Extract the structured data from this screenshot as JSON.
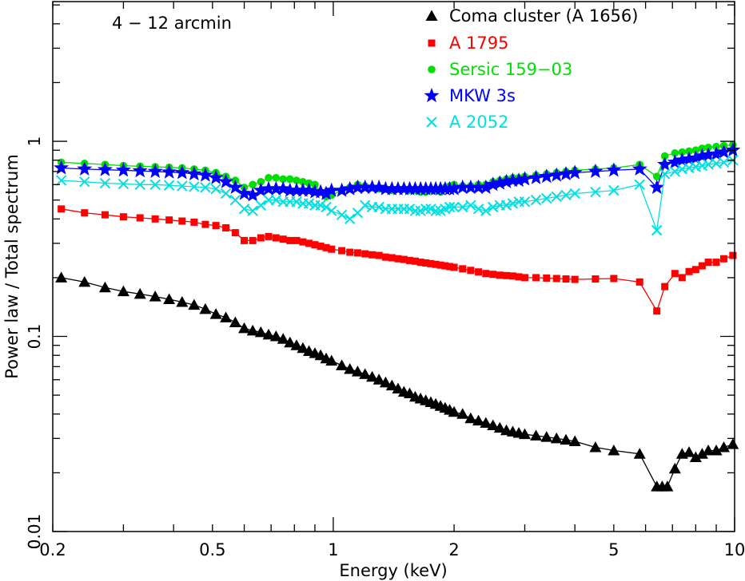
{
  "chart_data": {
    "type": "line",
    "title": "4 − 12 arcmin",
    "xlabel": "Energy (keV)",
    "ylabel": "Power law / Total spectrum",
    "xscale": "log",
    "yscale": "log",
    "xlim": [
      0.2,
      10
    ],
    "ylim": [
      0.01,
      5.2
    ],
    "x_ticks": [
      {
        "value": 0.2,
        "label": "0.2"
      },
      {
        "value": 0.5,
        "label": "0.5"
      },
      {
        "value": 1,
        "label": "1"
      },
      {
        "value": 2,
        "label": "2"
      },
      {
        "value": 5,
        "label": "5"
      },
      {
        "value": 10,
        "label": "10"
      }
    ],
    "y_ticks": [
      {
        "value": 0.01,
        "label": "0.01"
      },
      {
        "value": 0.1,
        "label": "0.1"
      },
      {
        "value": 1,
        "label": "1"
      }
    ],
    "corner_label": "0",
    "legend_position": "top-right",
    "grid": false,
    "series": [
      {
        "name": "Coma cluster (A 1656)",
        "color": "#000000",
        "marker": "triangle",
        "x": [
          0.21,
          0.24,
          0.27,
          0.3,
          0.33,
          0.36,
          0.39,
          0.42,
          0.45,
          0.48,
          0.51,
          0.54,
          0.57,
          0.6,
          0.63,
          0.66,
          0.69,
          0.72,
          0.75,
          0.78,
          0.81,
          0.84,
          0.87,
          0.9,
          0.93,
          0.96,
          0.99,
          1.05,
          1.1,
          1.15,
          1.2,
          1.25,
          1.3,
          1.35,
          1.4,
          1.45,
          1.5,
          1.55,
          1.6,
          1.65,
          1.7,
          1.75,
          1.8,
          1.85,
          1.9,
          1.95,
          2.0,
          2.1,
          2.2,
          2.3,
          2.4,
          2.5,
          2.6,
          2.7,
          2.8,
          2.9,
          3.0,
          3.2,
          3.4,
          3.6,
          3.8,
          4.0,
          4.5,
          5.0,
          5.8,
          6.4,
          6.6,
          6.8,
          7.1,
          7.4,
          7.7,
          8.0,
          8.3,
          8.6,
          9.0,
          9.4,
          9.9
        ],
        "y": [
          0.2,
          0.19,
          0.178,
          0.17,
          0.165,
          0.16,
          0.155,
          0.15,
          0.145,
          0.138,
          0.13,
          0.125,
          0.118,
          0.11,
          0.107,
          0.105,
          0.102,
          0.1,
          0.097,
          0.093,
          0.09,
          0.087,
          0.084,
          0.082,
          0.08,
          0.077,
          0.075,
          0.071,
          0.068,
          0.066,
          0.064,
          0.062,
          0.06,
          0.058,
          0.056,
          0.054,
          0.052,
          0.051,
          0.049,
          0.048,
          0.047,
          0.046,
          0.045,
          0.044,
          0.043,
          0.042,
          0.041,
          0.04,
          0.038,
          0.037,
          0.036,
          0.035,
          0.034,
          0.033,
          0.0325,
          0.032,
          0.0315,
          0.031,
          0.0305,
          0.03,
          0.0295,
          0.029,
          0.027,
          0.026,
          0.025,
          0.017,
          0.017,
          0.017,
          0.021,
          0.025,
          0.0255,
          0.024,
          0.025,
          0.026,
          0.026,
          0.027,
          0.028
        ]
      },
      {
        "name": "A 1795",
        "color": "#ff0000",
        "marker": "square",
        "x": [
          0.21,
          0.24,
          0.27,
          0.3,
          0.33,
          0.36,
          0.39,
          0.42,
          0.45,
          0.48,
          0.51,
          0.54,
          0.57,
          0.6,
          0.63,
          0.66,
          0.69,
          0.72,
          0.75,
          0.78,
          0.81,
          0.84,
          0.87,
          0.9,
          0.93,
          0.96,
          0.99,
          1.05,
          1.1,
          1.15,
          1.2,
          1.25,
          1.3,
          1.35,
          1.4,
          1.45,
          1.5,
          1.55,
          1.6,
          1.65,
          1.7,
          1.75,
          1.8,
          1.85,
          1.9,
          1.95,
          2.0,
          2.1,
          2.2,
          2.3,
          2.4,
          2.5,
          2.6,
          2.7,
          2.8,
          2.9,
          3.0,
          3.2,
          3.4,
          3.6,
          3.8,
          4.0,
          4.5,
          5.0,
          5.8,
          6.4,
          6.7,
          7.1,
          7.4,
          7.7,
          8.0,
          8.3,
          8.6,
          9.0,
          9.4,
          9.9
        ],
        "y": [
          0.45,
          0.43,
          0.42,
          0.41,
          0.405,
          0.4,
          0.395,
          0.39,
          0.385,
          0.375,
          0.37,
          0.36,
          0.34,
          0.31,
          0.31,
          0.32,
          0.325,
          0.32,
          0.315,
          0.31,
          0.31,
          0.305,
          0.3,
          0.295,
          0.29,
          0.285,
          0.28,
          0.275,
          0.27,
          0.268,
          0.265,
          0.262,
          0.26,
          0.255,
          0.253,
          0.25,
          0.248,
          0.245,
          0.243,
          0.24,
          0.238,
          0.236,
          0.234,
          0.232,
          0.23,
          0.228,
          0.226,
          0.222,
          0.218,
          0.214,
          0.21,
          0.208,
          0.206,
          0.205,
          0.204,
          0.202,
          0.2,
          0.2,
          0.199,
          0.198,
          0.197,
          0.196,
          0.197,
          0.198,
          0.19,
          0.135,
          0.18,
          0.21,
          0.2,
          0.215,
          0.22,
          0.23,
          0.24,
          0.24,
          0.25,
          0.26
        ]
      },
      {
        "name": "Sersic 159−03",
        "color": "#00e000",
        "marker": "circle",
        "x": [
          0.21,
          0.24,
          0.27,
          0.3,
          0.33,
          0.36,
          0.39,
          0.42,
          0.45,
          0.48,
          0.51,
          0.54,
          0.57,
          0.6,
          0.63,
          0.66,
          0.69,
          0.72,
          0.75,
          0.78,
          0.81,
          0.84,
          0.87,
          0.9,
          0.93,
          0.96,
          0.99,
          1.05,
          1.1,
          1.15,
          1.2,
          1.25,
          1.3,
          1.35,
          1.4,
          1.45,
          1.5,
          1.55,
          1.6,
          1.65,
          1.7,
          1.75,
          1.8,
          1.85,
          1.9,
          1.95,
          2.0,
          2.1,
          2.2,
          2.3,
          2.4,
          2.5,
          2.6,
          2.7,
          2.8,
          2.9,
          3.0,
          3.2,
          3.4,
          3.6,
          3.8,
          4.0,
          4.5,
          5.0,
          5.8,
          6.4,
          6.7,
          7.1,
          7.4,
          7.7,
          8.0,
          8.3,
          8.6,
          9.0,
          9.4,
          9.9
        ],
        "y": [
          0.78,
          0.77,
          0.76,
          0.75,
          0.745,
          0.74,
          0.735,
          0.73,
          0.72,
          0.71,
          0.69,
          0.66,
          0.63,
          0.58,
          0.6,
          0.62,
          0.65,
          0.65,
          0.64,
          0.64,
          0.63,
          0.62,
          0.61,
          0.6,
          0.55,
          0.52,
          0.53,
          0.56,
          0.58,
          0.6,
          0.59,
          0.58,
          0.57,
          0.57,
          0.56,
          0.57,
          0.57,
          0.56,
          0.56,
          0.55,
          0.55,
          0.56,
          0.56,
          0.55,
          0.58,
          0.59,
          0.6,
          0.59,
          0.59,
          0.6,
          0.6,
          0.62,
          0.63,
          0.64,
          0.65,
          0.65,
          0.66,
          0.67,
          0.68,
          0.69,
          0.7,
          0.71,
          0.72,
          0.73,
          0.76,
          0.66,
          0.84,
          0.87,
          0.88,
          0.89,
          0.9,
          0.92,
          0.93,
          0.94,
          0.95,
          0.96
        ]
      },
      {
        "name": "MKW 3s",
        "color": "#0000ff",
        "marker": "star",
        "x": [
          0.21,
          0.24,
          0.27,
          0.3,
          0.33,
          0.36,
          0.39,
          0.42,
          0.45,
          0.48,
          0.51,
          0.54,
          0.57,
          0.6,
          0.63,
          0.66,
          0.69,
          0.72,
          0.75,
          0.78,
          0.81,
          0.84,
          0.87,
          0.9,
          0.93,
          0.96,
          0.99,
          1.05,
          1.1,
          1.15,
          1.2,
          1.25,
          1.3,
          1.35,
          1.4,
          1.45,
          1.5,
          1.55,
          1.6,
          1.65,
          1.7,
          1.75,
          1.8,
          1.85,
          1.9,
          1.95,
          2.0,
          2.1,
          2.2,
          2.3,
          2.4,
          2.5,
          2.6,
          2.7,
          2.8,
          2.9,
          3.0,
          3.2,
          3.4,
          3.6,
          3.8,
          4.0,
          4.5,
          5.0,
          5.8,
          6.4,
          6.7,
          7.1,
          7.4,
          7.7,
          8.0,
          8.3,
          8.6,
          9.0,
          9.4,
          9.9
        ],
        "y": [
          0.73,
          0.72,
          0.715,
          0.71,
          0.705,
          0.7,
          0.695,
          0.69,
          0.68,
          0.67,
          0.65,
          0.62,
          0.58,
          0.54,
          0.53,
          0.56,
          0.57,
          0.57,
          0.57,
          0.56,
          0.56,
          0.56,
          0.56,
          0.55,
          0.55,
          0.54,
          0.56,
          0.56,
          0.57,
          0.58,
          0.58,
          0.58,
          0.58,
          0.57,
          0.57,
          0.57,
          0.57,
          0.57,
          0.57,
          0.57,
          0.57,
          0.57,
          0.57,
          0.57,
          0.57,
          0.57,
          0.57,
          0.58,
          0.58,
          0.58,
          0.58,
          0.6,
          0.61,
          0.62,
          0.63,
          0.63,
          0.64,
          0.65,
          0.66,
          0.67,
          0.68,
          0.69,
          0.7,
          0.71,
          0.72,
          0.58,
          0.76,
          0.78,
          0.8,
          0.81,
          0.82,
          0.84,
          0.85,
          0.86,
          0.88,
          0.9
        ]
      },
      {
        "name": "A 2052",
        "color": "#00e0e0",
        "marker": "cross",
        "x": [
          0.21,
          0.24,
          0.27,
          0.3,
          0.33,
          0.36,
          0.39,
          0.42,
          0.45,
          0.48,
          0.51,
          0.54,
          0.57,
          0.6,
          0.63,
          0.66,
          0.69,
          0.72,
          0.75,
          0.78,
          0.81,
          0.84,
          0.87,
          0.9,
          0.93,
          0.96,
          0.99,
          1.05,
          1.1,
          1.15,
          1.2,
          1.25,
          1.3,
          1.35,
          1.4,
          1.45,
          1.5,
          1.55,
          1.6,
          1.65,
          1.7,
          1.75,
          1.8,
          1.85,
          1.9,
          1.95,
          2.0,
          2.1,
          2.2,
          2.3,
          2.4,
          2.5,
          2.6,
          2.7,
          2.8,
          2.9,
          3.0,
          3.2,
          3.4,
          3.6,
          3.8,
          4.0,
          4.5,
          5.0,
          5.8,
          6.4,
          6.7,
          7.1,
          7.4,
          7.7,
          8.0,
          8.3,
          8.6,
          9.0,
          9.4,
          9.9
        ],
        "y": [
          0.63,
          0.62,
          0.61,
          0.605,
          0.6,
          0.6,
          0.595,
          0.59,
          0.585,
          0.58,
          0.57,
          0.54,
          0.5,
          0.45,
          0.44,
          0.47,
          0.5,
          0.5,
          0.49,
          0.49,
          0.49,
          0.48,
          0.48,
          0.47,
          0.47,
          0.46,
          0.44,
          0.42,
          0.4,
          0.43,
          0.47,
          0.46,
          0.46,
          0.45,
          0.45,
          0.45,
          0.45,
          0.45,
          0.44,
          0.44,
          0.45,
          0.45,
          0.44,
          0.44,
          0.45,
          0.46,
          0.46,
          0.46,
          0.47,
          0.45,
          0.44,
          0.46,
          0.47,
          0.47,
          0.48,
          0.49,
          0.49,
          0.5,
          0.51,
          0.52,
          0.53,
          0.54,
          0.55,
          0.56,
          0.6,
          0.35,
          0.68,
          0.7,
          0.72,
          0.73,
          0.74,
          0.75,
          0.76,
          0.77,
          0.78,
          0.8
        ]
      }
    ]
  }
}
